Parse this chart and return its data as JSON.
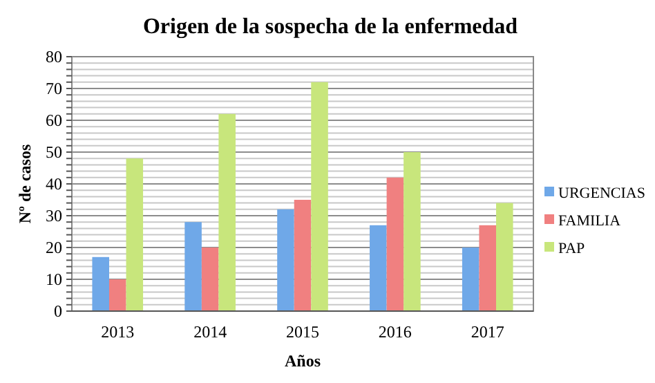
{
  "chart_data": {
    "type": "bar",
    "title": "Origen de la sospecha de la enfermedad",
    "xlabel": "Años",
    "ylabel": "Nº de casos",
    "categories": [
      "2013",
      "2014",
      "2015",
      "2016",
      "2017"
    ],
    "series": [
      {
        "name": "URGENCIAS",
        "color": "#6fa8e8",
        "values": [
          17,
          28,
          32,
          27,
          20
        ]
      },
      {
        "name": "FAMILIA",
        "color": "#f08080",
        "values": [
          10,
          20,
          35,
          42,
          27
        ]
      },
      {
        "name": "PAP",
        "color": "#c8e67c",
        "values": [
          48,
          62,
          72,
          50,
          34
        ]
      }
    ],
    "ylim": [
      0,
      80
    ],
    "yticks": [
      0,
      {
        "value": 2,
        "label": null
      },
      {
        "value": 4,
        "label": null
      },
      {
        "value": 6,
        "label": null
      },
      {
        "value": 8,
        "label": null
      },
      10,
      {
        "value": 12,
        "label": null
      },
      {
        "value": 14,
        "label": null
      },
      {
        "value": 16,
        "label": null
      },
      {
        "value": 18,
        "label": null
      },
      20,
      {
        "value": 22,
        "label": null
      },
      {
        "value": 24,
        "label": null
      },
      {
        "value": 26,
        "label": null
      },
      {
        "value": 28,
        "label": null
      },
      30,
      {
        "value": 32,
        "label": null
      },
      {
        "value": 34,
        "label": null
      },
      {
        "value": 36,
        "label": null
      },
      {
        "value": 38,
        "label": null
      },
      40,
      {
        "value": 42,
        "label": null
      },
      {
        "value": 44,
        "label": null
      },
      {
        "value": 46,
        "label": null
      },
      {
        "value": 48,
        "label": null
      },
      50,
      {
        "value": 52,
        "label": null
      },
      {
        "value": 54,
        "label": null
      },
      {
        "value": 56,
        "label": null
      },
      {
        "value": 58,
        "label": null
      },
      60,
      {
        "value": 62,
        "label": null
      },
      {
        "value": 64,
        "label": null
      },
      {
        "value": 66,
        "label": null
      },
      {
        "value": 68,
        "label": null
      },
      70,
      {
        "value": 72,
        "label": null
      },
      {
        "value": 74,
        "label": null
      },
      {
        "value": 76,
        "label": null
      },
      {
        "value": 78,
        "label": null
      },
      80
    ],
    "grid": "y",
    "legend": "right"
  }
}
